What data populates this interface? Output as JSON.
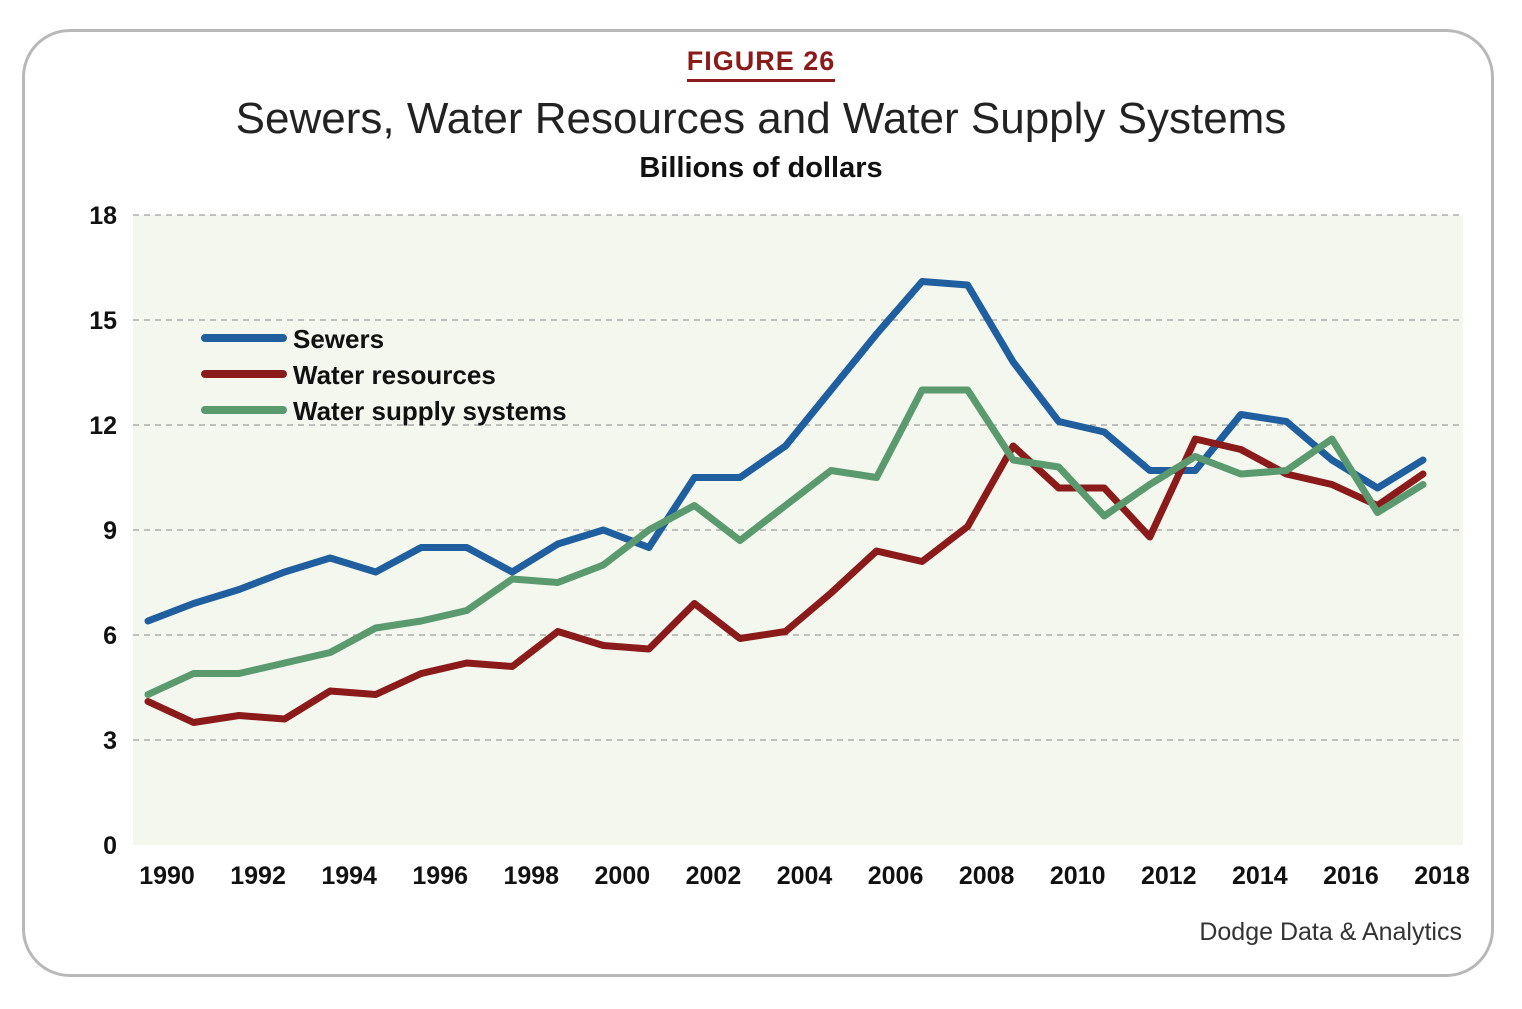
{
  "figure_label": "FIGURE 26",
  "source": "Dodge Data & Analytics",
  "colors": {
    "sewers": "#1f5fa0",
    "water_resources": "#8b1a1a",
    "water_supply": "#5a9a6e",
    "plot_background": "#f3f7ee",
    "grid": "#a0a0a0",
    "figure_label": "#8b1a1a"
  },
  "chart_data": {
    "type": "line",
    "title": "Sewers, Water Resources and Water Supply Systems",
    "subtitle": "Billions of dollars",
    "xlabel": "",
    "ylabel": "",
    "x": [
      1990,
      1991,
      1992,
      1993,
      1994,
      1995,
      1996,
      1997,
      1998,
      1999,
      2000,
      2001,
      2002,
      2003,
      2004,
      2005,
      2006,
      2007,
      2008,
      2009,
      2010,
      2011,
      2012,
      2013,
      2014,
      2015,
      2016,
      2017,
      2018
    ],
    "x_ticks": [
      "1990",
      "1992",
      "1994",
      "1996",
      "1998",
      "2000",
      "2002",
      "2004",
      "2006",
      "2008",
      "2010",
      "2012",
      "2014",
      "2016",
      "2018"
    ],
    "y_ticks": [
      "0",
      "3",
      "6",
      "9",
      "12",
      "15",
      "18"
    ],
    "ylim": [
      0,
      18
    ],
    "xlim": [
      1990,
      2018
    ],
    "grid": "horizontal dashed",
    "legend_position": "upper-left",
    "series": [
      {
        "name": "Sewers",
        "color_key": "sewers",
        "values": [
          6.4,
          6.9,
          7.3,
          7.8,
          8.2,
          7.8,
          8.5,
          8.5,
          7.8,
          8.6,
          9.0,
          8.5,
          10.5,
          10.5,
          11.4,
          13.0,
          14.6,
          16.1,
          16.0,
          13.8,
          12.1,
          11.8,
          10.7,
          10.7,
          12.3,
          12.1,
          11.0,
          10.2,
          11.0
        ]
      },
      {
        "name": "Water resources",
        "color_key": "water_resources",
        "values": [
          4.1,
          3.5,
          3.7,
          3.6,
          4.4,
          4.3,
          4.9,
          5.2,
          5.1,
          6.1,
          5.7,
          5.6,
          6.9,
          5.9,
          6.1,
          7.2,
          8.4,
          8.1,
          9.1,
          11.4,
          10.2,
          10.2,
          8.8,
          11.6,
          11.3,
          10.6,
          10.3,
          9.7,
          10.6
        ]
      },
      {
        "name": "Water supply systems",
        "color_key": "water_supply",
        "values": [
          4.3,
          4.9,
          4.9,
          5.2,
          5.5,
          6.2,
          6.4,
          6.7,
          7.6,
          7.5,
          8.0,
          9.0,
          9.7,
          8.7,
          9.7,
          10.7,
          10.5,
          13.0,
          13.0,
          11.0,
          10.8,
          9.4,
          10.3,
          11.1,
          10.6,
          10.7,
          11.6,
          9.5,
          10.3
        ]
      }
    ]
  }
}
